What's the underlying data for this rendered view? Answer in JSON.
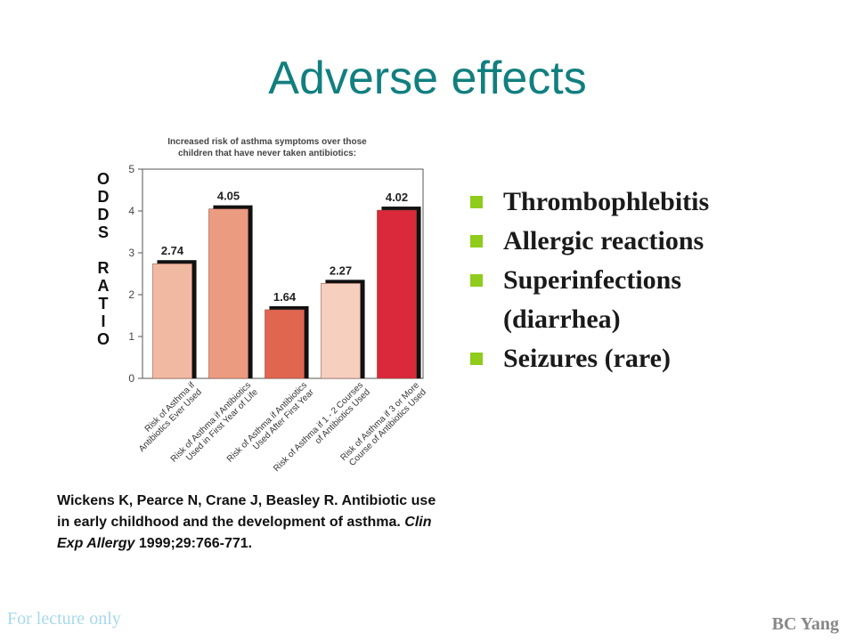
{
  "slide": {
    "title": "Adverse effects",
    "bullets": [
      "Thrombophlebitis",
      "Allergic reactions",
      "Superinfections (diarrhea)",
      "Seizures (rare)"
    ],
    "citation": {
      "authors": "Wickens K, Pearce N, Crane J, Beasley R.",
      "title": "Antibiotic use in early childhood and the development of asthma.",
      "journal": "Clin Exp Allergy",
      "ref": "1999;29:766-771."
    },
    "footer_left": "For lecture only",
    "footer_right": "BC Yang"
  },
  "chart_data": {
    "type": "bar",
    "title": "Increased risk of asthma symptoms over those children that have never taken antibiotics:",
    "title_lines": [
      "Increased risk of asthma symptoms over those",
      "children that have never taken antibiotics:"
    ],
    "ylabel": "ODDS RATIO",
    "ylabel_letters": [
      "O",
      "D",
      "D",
      "S",
      "",
      "R",
      "A",
      "T",
      "I",
      "O"
    ],
    "ylim": [
      0,
      5
    ],
    "yticks": [
      "0",
      "1",
      "2",
      "3",
      "4",
      "5"
    ],
    "categories": [
      "Risk of Asthma if Antibiotics Ever Used",
      "Risk of Asthma if Antibiotics Used in First Year of Life",
      "Risk of Asthma if Antibiotics Used After First Year",
      "Risk of Asthma if 1 - 2 Courses of Antibiotics Used",
      "Risk of Asthma if 3 or More Course of Antibiotics Used"
    ],
    "category_lines": [
      [
        "Risk of Asthma if",
        "Antibiotics Ever Used"
      ],
      [
        "Risk of Asthma if Antibiotics",
        "Used in First Year of Life"
      ],
      [
        "Risk of Asthma if Antibiotics",
        "Used After First Year"
      ],
      [
        "Risk of Asthma if 1 - 2 Courses",
        "of Antibiotics Used"
      ],
      [
        "Risk of Asthma if 3 or More",
        "Course of Antibiotics Used"
      ]
    ],
    "values": [
      2.74,
      4.05,
      1.64,
      2.27,
      4.02
    ],
    "labels": [
      "2.74",
      "4.05",
      "1.64",
      "2.27",
      "4.02"
    ],
    "colors": [
      "#f2b9a2",
      "#eb9b7f",
      "#e06650",
      "#f6cfbf",
      "#d9293a"
    ],
    "grid": false
  }
}
